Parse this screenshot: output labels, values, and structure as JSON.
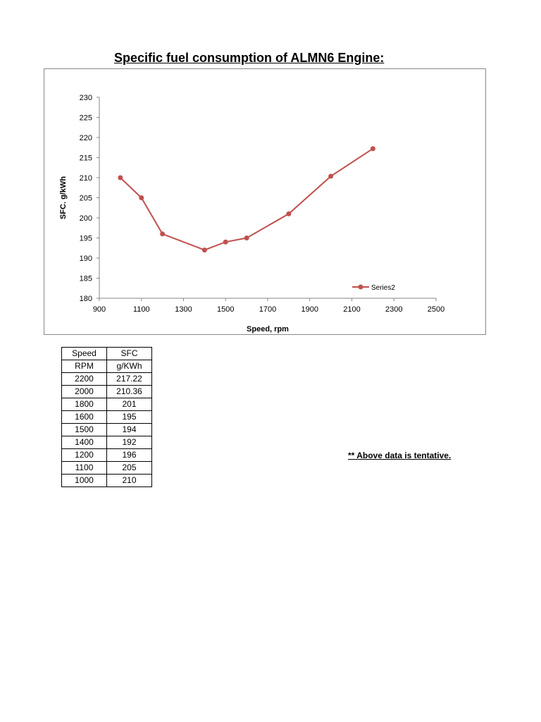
{
  "page": {
    "title": "Specific fuel consumption of ALMN6 Engine:",
    "note": "** Above data is tentative."
  },
  "chart_data": {
    "type": "line",
    "title": "",
    "xlabel": "Speed, rpm",
    "ylabel": "SFC. g/kWh",
    "xlim": [
      900,
      2500
    ],
    "ylim": [
      180,
      230
    ],
    "xticks": [
      900,
      1100,
      1300,
      1500,
      1700,
      1900,
      2100,
      2300,
      2500
    ],
    "yticks": [
      180,
      185,
      190,
      195,
      200,
      205,
      210,
      215,
      220,
      225,
      230
    ],
    "grid": false,
    "legend_position": "bottom-right",
    "series": [
      {
        "name": "Series2",
        "color": "#c0504d",
        "x": [
          1000,
          1100,
          1200,
          1400,
          1500,
          1600,
          1800,
          2000,
          2200
        ],
        "y": [
          210,
          205,
          196,
          192,
          194,
          195,
          201,
          210.36,
          217.22
        ]
      }
    ]
  },
  "table": {
    "headers": [
      [
        "Speed",
        "SFC"
      ],
      [
        "RPM",
        "g/KWh"
      ]
    ],
    "rows": [
      [
        "2200",
        "217.22"
      ],
      [
        "2000",
        "210.36"
      ],
      [
        "1800",
        "201"
      ],
      [
        "1600",
        "195"
      ],
      [
        "1500",
        "194"
      ],
      [
        "1400",
        "192"
      ],
      [
        "1200",
        "196"
      ],
      [
        "1100",
        "205"
      ],
      [
        "1000",
        "210"
      ]
    ]
  }
}
